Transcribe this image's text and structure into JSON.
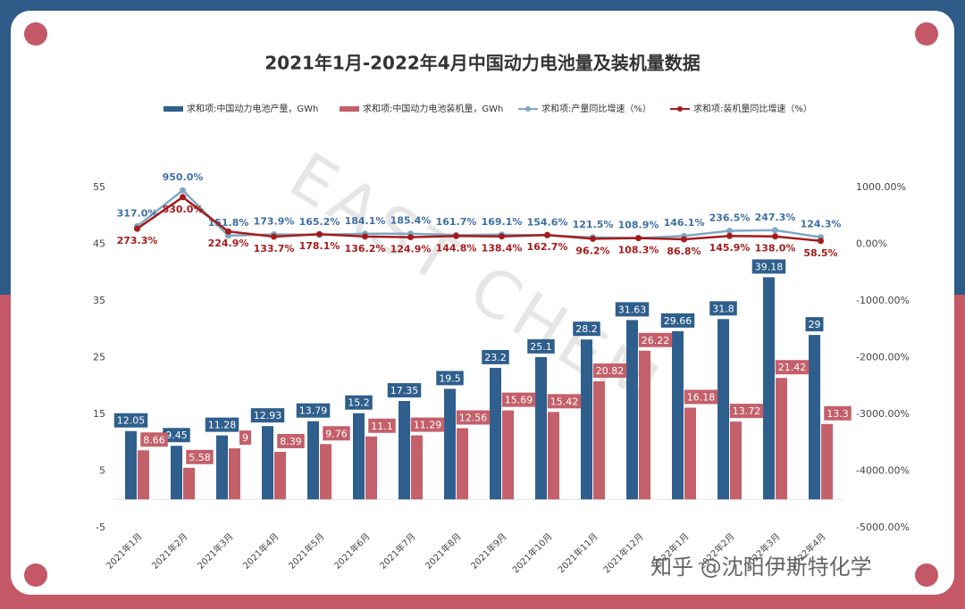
{
  "chart_data": {
    "type": "bar_line",
    "title": "2021年1月-2022年4月中国动力电池量及装机量数据",
    "watermark": "EAST CHEM",
    "credit": "知乎 @沈阳伊斯特化学",
    "categories": [
      "2021年1月",
      "2021年2月",
      "2021年3月",
      "2021年4月",
      "2021年5月",
      "2021年6月",
      "2021年7月",
      "2021年8月",
      "2021年9月",
      "2021年10月",
      "2021年11月",
      "2021年12月",
      "2022年1月",
      "2022年2月",
      "2022年3月",
      "2022年4月"
    ],
    "series": [
      {
        "name": "求和项:中国动力电池产量，GWh",
        "type": "bar",
        "color": "#2f5f8c",
        "values": [
          12.05,
          9.45,
          11.28,
          12.93,
          13.79,
          15.2,
          17.35,
          19.5,
          23.2,
          25.1,
          28.2,
          31.63,
          29.66,
          31.8,
          39.18,
          29
        ]
      },
      {
        "name": "求和项:中国动力电池装机量，GWh",
        "type": "bar",
        "color": "#c4606a",
        "values": [
          8.66,
          5.58,
          9,
          8.39,
          9.76,
          11.1,
          11.29,
          12.56,
          15.69,
          15.42,
          20.82,
          26.22,
          16.18,
          13.72,
          21.42,
          13.3
        ]
      },
      {
        "name": "求和项:产量同比增速（%）",
        "type": "line",
        "axis": "y2",
        "color": "#7fa8c6",
        "label_color": "#3e6fa3",
        "values": [
          317.0,
          950.0,
          151.8,
          173.9,
          165.2,
          184.1,
          185.4,
          161.7,
          169.1,
          154.6,
          121.5,
          108.9,
          146.1,
          236.5,
          247.3,
          124.3
        ],
        "value_labels": [
          "317.0%",
          "950.0%",
          "151.8%",
          "173.9%",
          "165.2%",
          "184.1%",
          "185.4%",
          "161.7%",
          "169.1%",
          "154.6%",
          "121.5%",
          "108.9%",
          "146.1%",
          "236.5%",
          "247.3%",
          "124.3%"
        ]
      },
      {
        "name": "求和项:装机量同比增速（%）",
        "type": "line",
        "axis": "y2",
        "color": "#a51c1c",
        "label_color": "#a51c1c",
        "values": [
          273.3,
          830.0,
          224.9,
          133.7,
          178.1,
          136.2,
          124.9,
          144.8,
          138.4,
          162.7,
          96.2,
          108.3,
          86.8,
          145.9,
          138.0,
          58.5
        ],
        "value_labels": [
          "273.3%",
          "830.0%",
          "224.9%",
          "133.7%",
          "178.1%",
          "136.2%",
          "124.9%",
          "144.8%",
          "138.4%",
          "162.7%",
          "96.2%",
          "108.3%",
          "86.8%",
          "145.9%",
          "138.0%",
          "58.5%"
        ]
      }
    ],
    "ylim": [
      -5,
      55
    ],
    "yticks": [
      -5,
      5,
      15,
      25,
      35,
      45,
      55
    ],
    "y2lim": [
      -5000,
      1000
    ],
    "y2ticks": [
      {
        "value": -5000,
        "label": "-5000.00%"
      },
      {
        "value": -4000,
        "label": "-4000.00%"
      },
      {
        "value": -3000,
        "label": "-3000.00%"
      },
      {
        "value": -2000,
        "label": "-2000.00%"
      },
      {
        "value": -1000,
        "label": "-1000.00%"
      },
      {
        "value": 0,
        "label": "0.00%"
      },
      {
        "value": 1000,
        "label": "1000.00%"
      }
    ],
    "grid": false
  }
}
